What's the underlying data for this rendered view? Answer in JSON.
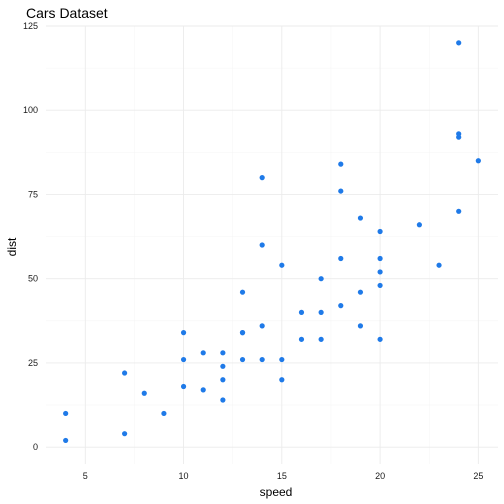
{
  "chart_data": {
    "type": "scatter",
    "title": "Cars Dataset",
    "xlabel": "speed",
    "ylabel": "dist",
    "xlim": [
      3,
      26
    ],
    "ylim": [
      -5,
      125
    ],
    "x_ticks": [
      5,
      10,
      15,
      20,
      25
    ],
    "y_ticks": [
      0,
      25,
      50,
      75,
      100,
      125
    ],
    "grid": true,
    "point_color": "#1f7ae8",
    "points": [
      [
        4,
        2
      ],
      [
        4,
        10
      ],
      [
        7,
        4
      ],
      [
        7,
        22
      ],
      [
        8,
        16
      ],
      [
        9,
        10
      ],
      [
        10,
        18
      ],
      [
        10,
        26
      ],
      [
        10,
        34
      ],
      [
        11,
        17
      ],
      [
        11,
        28
      ],
      [
        12,
        14
      ],
      [
        12,
        20
      ],
      [
        12,
        24
      ],
      [
        12,
        28
      ],
      [
        13,
        26
      ],
      [
        13,
        34
      ],
      [
        13,
        34
      ],
      [
        13,
        46
      ],
      [
        14,
        26
      ],
      [
        14,
        36
      ],
      [
        14,
        60
      ],
      [
        14,
        80
      ],
      [
        15,
        20
      ],
      [
        15,
        26
      ],
      [
        15,
        54
      ],
      [
        16,
        32
      ],
      [
        16,
        40
      ],
      [
        17,
        32
      ],
      [
        17,
        40
      ],
      [
        17,
        50
      ],
      [
        18,
        42
      ],
      [
        18,
        56
      ],
      [
        18,
        76
      ],
      [
        18,
        84
      ],
      [
        19,
        36
      ],
      [
        19,
        46
      ],
      [
        19,
        68
      ],
      [
        20,
        32
      ],
      [
        20,
        48
      ],
      [
        20,
        52
      ],
      [
        20,
        56
      ],
      [
        20,
        64
      ],
      [
        22,
        66
      ],
      [
        23,
        54
      ],
      [
        24,
        70
      ],
      [
        24,
        92
      ],
      [
        24,
        93
      ],
      [
        24,
        120
      ],
      [
        25,
        85
      ]
    ]
  }
}
